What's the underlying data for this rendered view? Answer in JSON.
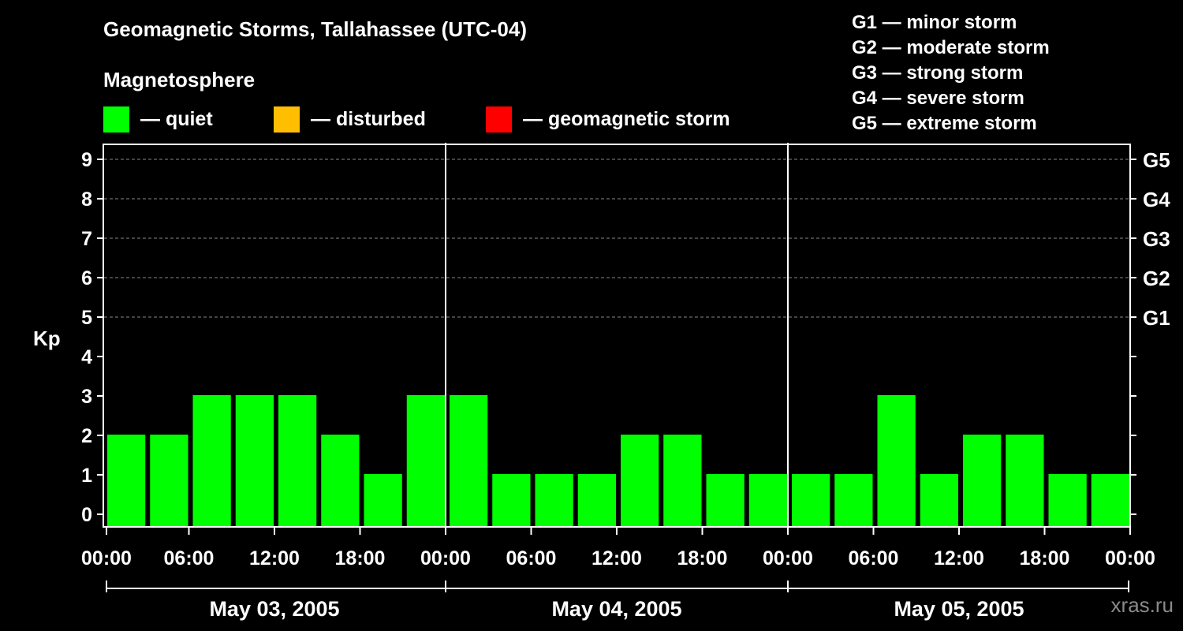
{
  "header": {
    "title": "Geomagnetic Storms, Tallahassee (UTC-04)",
    "subtitle": "Magnetosphere"
  },
  "legend": [
    {
      "label": "— quiet",
      "color": "#00ff00"
    },
    {
      "label": "— disturbed",
      "color": "#ffbf00"
    },
    {
      "label": "— geomagnetic storm",
      "color": "#ff0000"
    }
  ],
  "g_scale": [
    "G1 — minor storm",
    "G2 — moderate storm",
    "G3 — strong storm",
    "G4 — severe storm",
    "G5 — extreme storm"
  ],
  "watermark": "xras.ru",
  "chart_data": {
    "type": "bar",
    "ylabel": "Kp",
    "ylim": [
      0,
      9
    ],
    "y_ticks": [
      "0",
      "1",
      "2",
      "3",
      "4",
      "5",
      "6",
      "7",
      "8",
      "9"
    ],
    "right_axis_labels": [
      {
        "kp": 5,
        "label": "G1"
      },
      {
        "kp": 6,
        "label": "G2"
      },
      {
        "kp": 7,
        "label": "G3"
      },
      {
        "kp": 8,
        "label": "G4"
      },
      {
        "kp": 9,
        "label": "G5"
      }
    ],
    "grid_dashed_at": [
      5,
      6,
      7,
      8,
      9
    ],
    "x_tick_labels": [
      "00:00",
      "06:00",
      "12:00",
      "18:00",
      "00:00",
      "06:00",
      "12:00",
      "18:00",
      "00:00",
      "06:00",
      "12:00",
      "18:00",
      "00:00"
    ],
    "days": [
      "May 03, 2005",
      "May 04, 2005",
      "May 05, 2005"
    ],
    "interval_hours": 3,
    "series": [
      {
        "values": [
          2,
          2,
          3,
          3,
          3,
          2,
          1,
          3,
          3,
          1,
          1,
          1,
          2,
          2,
          1,
          1,
          1,
          1,
          3,
          1,
          2,
          2,
          1,
          1
        ],
        "color": "#00ff00"
      }
    ]
  }
}
